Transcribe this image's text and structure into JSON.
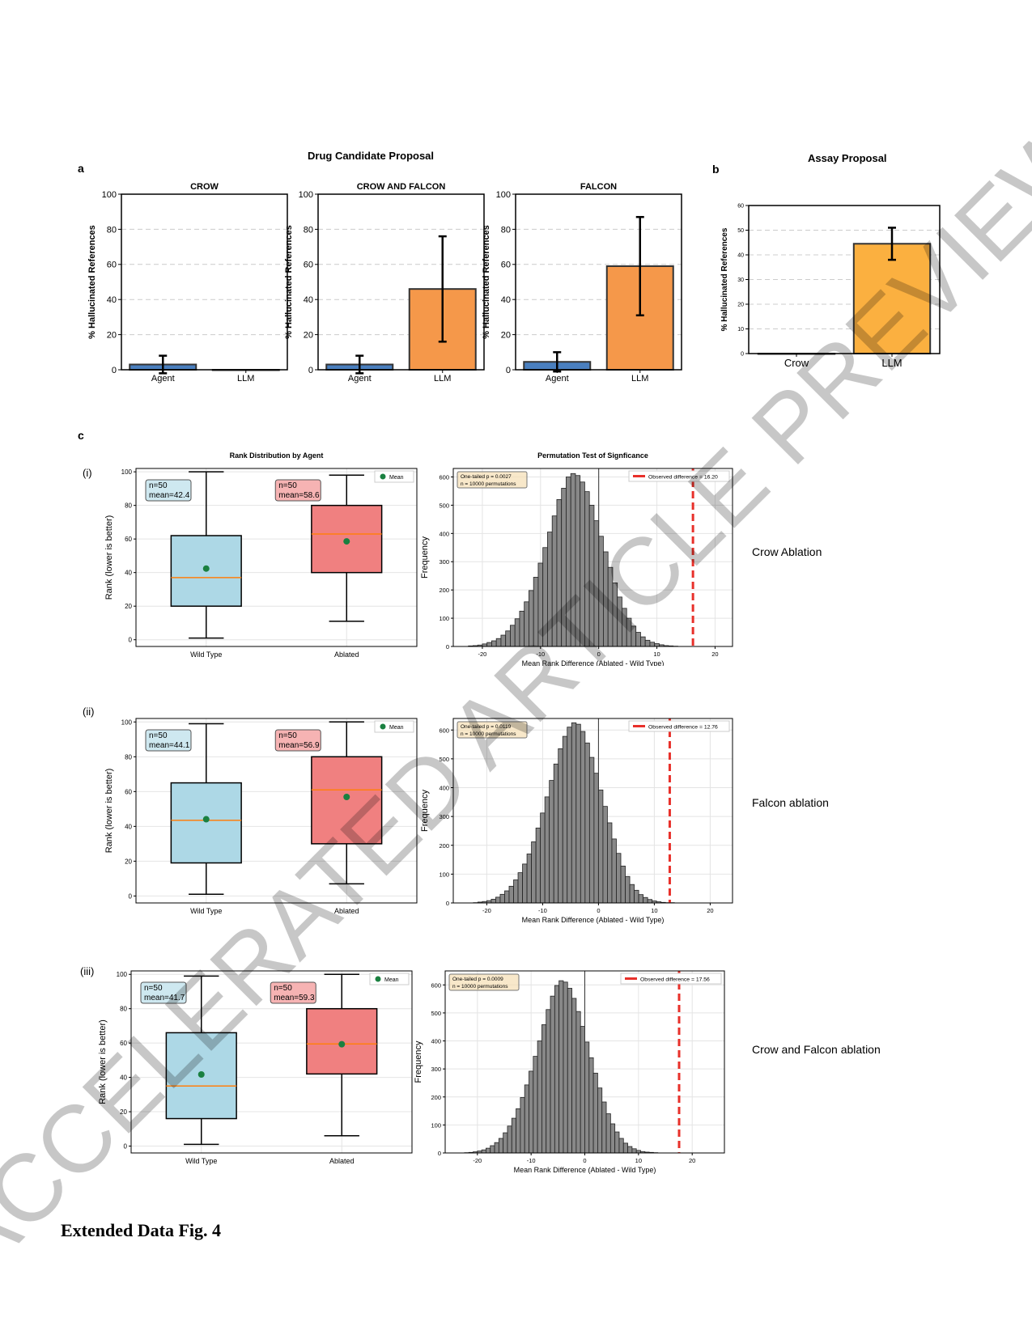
{
  "header": {
    "panel_a_letter": "a",
    "panel_b_letter": "b",
    "panel_c_letter": "c",
    "drug_title": "Drug Candidate Proposal",
    "assay_title": "Assay Proposal"
  },
  "rows": [
    {
      "label": "(i)",
      "side": "Crow Ablation"
    },
    {
      "label": "(ii)",
      "side": "Falcon ablation"
    },
    {
      "label": "(iii)",
      "side": "Crow and Falcon ablation"
    }
  ],
  "caption": "Extended Data Fig. 4",
  "watermark": "ACCELERATED ARTICLE PREVIEW",
  "colors": {
    "agent": "#4a7fbf",
    "llm": "#f5984a",
    "assay_llm": "#fbb040",
    "wild": "#add8e6",
    "ablated": "#f08080",
    "median": "#ff7f0e",
    "mean": "#1a8040",
    "hist": "#888888",
    "observed": "#e8302a"
  },
  "chart_data": [
    {
      "type": "bar",
      "title": "CROW",
      "categories": [
        "Agent",
        "LLM"
      ],
      "values": [
        3,
        0
      ],
      "errors": [
        5,
        0
      ],
      "ylabel": "% Hallucinated References",
      "ylim": [
        0,
        100
      ],
      "yticks": [
        0,
        20,
        40,
        60,
        80,
        100
      ],
      "grid": true
    },
    {
      "type": "bar",
      "title": "CROW AND FALCON",
      "categories": [
        "Agent",
        "LLM"
      ],
      "values": [
        3,
        46
      ],
      "errors": [
        5,
        30
      ],
      "ylabel": "% Hallucinated References",
      "ylim": [
        0,
        100
      ],
      "yticks": [
        0,
        20,
        40,
        60,
        80,
        100
      ],
      "grid": true
    },
    {
      "type": "bar",
      "title": "FALCON",
      "categories": [
        "Agent",
        "LLM"
      ],
      "values": [
        4.5,
        59
      ],
      "errors": [
        5.5,
        28
      ],
      "ylabel": "% Hallucinated References",
      "ylim": [
        0,
        100
      ],
      "yticks": [
        0,
        20,
        40,
        60,
        80,
        100
      ],
      "grid": true
    },
    {
      "type": "bar",
      "title": "",
      "categories": [
        "Crow",
        "LLM"
      ],
      "values": [
        0,
        44.5
      ],
      "errors": [
        0,
        6.5
      ],
      "ylabel": "% Hallucinated References",
      "ylim": [
        0,
        60
      ],
      "yticks": [
        0,
        10,
        20,
        30,
        40,
        50,
        60
      ],
      "grid": true
    },
    {
      "type": "box",
      "title": "Rank Distribution by Agent",
      "categories": [
        "Wild Type",
        "Ablated"
      ],
      "ylabel": "Rank (lower is better)",
      "ylim": [
        -4,
        102
      ],
      "yticks": [
        0,
        20,
        40,
        60,
        80,
        100
      ],
      "legend": "Mean",
      "legend_position": "top-right",
      "boxes": [
        {
          "min": 1,
          "q1": 20,
          "median": 37,
          "q3": 62,
          "max": 100,
          "mean": 42.4,
          "stat_n": "n=50",
          "stat_mean": "mean=42.4"
        },
        {
          "min": 11,
          "q1": 40,
          "median": 63,
          "q3": 80,
          "max": 98,
          "mean": 58.6,
          "stat_n": "n=50",
          "stat_mean": "mean=58.6"
        }
      ]
    },
    {
      "type": "histogram",
      "title": "Permutation Test of Signficance",
      "xlabel": "Mean Rank Difference (Ablated - Wild Type)",
      "ylabel": "Frequency",
      "xlim": [
        -25,
        23
      ],
      "ylim": [
        0,
        630
      ],
      "xticks": [
        -20,
        -10,
        0,
        10,
        20
      ],
      "yticks": [
        0,
        100,
        200,
        300,
        400,
        500,
        600
      ],
      "bin_start": -22.4,
      "bin_width": 0.8,
      "observed": 16.2,
      "observed_label": "Observed difference = 16.20",
      "stat_p": "One-tailed p = 0.0027",
      "stat_n": "n = 10000 permutations",
      "legend_position": "top-right",
      "counts": [
        2,
        3,
        5,
        9,
        14,
        20,
        28,
        40,
        55,
        75,
        98,
        125,
        158,
        198,
        245,
        295,
        350,
        405,
        462,
        520,
        560,
        600,
        612,
        605,
        582,
        548,
        500,
        445,
        390,
        335,
        280,
        225,
        175,
        135,
        100,
        72,
        50,
        34,
        22,
        15,
        10,
        6,
        3,
        2,
        1
      ]
    },
    {
      "type": "box",
      "title": "",
      "categories": [
        "Wild Type",
        "Ablated"
      ],
      "ylabel": "Rank (lower is better)",
      "ylim": [
        -4,
        102
      ],
      "yticks": [
        0,
        20,
        40,
        60,
        80,
        100
      ],
      "legend": "Mean",
      "legend_position": "top-right",
      "boxes": [
        {
          "min": 1,
          "q1": 19,
          "median": 43.5,
          "q3": 65,
          "max": 99,
          "mean": 44.1,
          "stat_n": "n=50",
          "stat_mean": "mean=44.1"
        },
        {
          "min": 7,
          "q1": 30,
          "median": 61,
          "q3": 80,
          "max": 100,
          "mean": 56.9,
          "stat_n": "n=50",
          "stat_mean": "mean=56.9"
        }
      ]
    },
    {
      "type": "histogram",
      "title": "",
      "xlabel": "Mean Rank Difference (Ablated - Wild Type)",
      "ylabel": "Frequency",
      "xlim": [
        -26,
        24
      ],
      "ylim": [
        0,
        640
      ],
      "xticks": [
        -20,
        -10,
        0,
        10,
        20
      ],
      "yticks": [
        0,
        100,
        200,
        300,
        400,
        500,
        600
      ],
      "bin_start": -22.4,
      "bin_width": 0.8,
      "observed": 12.76,
      "observed_label": "Observed difference = 12.76",
      "stat_p": "One-tailed p = 0.0119",
      "stat_n": "n = 10000 permutations",
      "legend_position": "top-right",
      "counts": [
        1,
        3,
        5,
        8,
        13,
        20,
        30,
        42,
        58,
        80,
        105,
        135,
        170,
        212,
        260,
        312,
        368,
        425,
        482,
        535,
        578,
        610,
        625,
        620,
        595,
        555,
        505,
        450,
        392,
        335,
        278,
        222,
        172,
        128,
        92,
        64,
        44,
        29,
        19,
        12,
        7,
        4,
        2,
        1,
        1
      ]
    },
    {
      "type": "box",
      "title": "",
      "categories": [
        "Wild Type",
        "Ablated"
      ],
      "ylabel": "Rank (lower is better)",
      "ylim": [
        -4,
        102
      ],
      "yticks": [
        0,
        20,
        40,
        60,
        80,
        100
      ],
      "legend": "Mean",
      "legend_position": "top-right",
      "boxes": [
        {
          "min": 1,
          "q1": 16,
          "median": 35,
          "q3": 66,
          "max": 99,
          "mean": 41.7,
          "stat_n": "n=50",
          "stat_mean": "mean=41.7"
        },
        {
          "min": 6,
          "q1": 42,
          "median": 59.5,
          "q3": 80,
          "max": 100,
          "mean": 59.3,
          "stat_n": "n=50",
          "stat_mean": "mean=59.3"
        }
      ]
    },
    {
      "type": "histogram",
      "title": "",
      "xlabel": "Mean Rank Difference (Ablated - Wild Type)",
      "ylabel": "Frequency",
      "xlim": [
        -26,
        26
      ],
      "ylim": [
        0,
        650
      ],
      "xticks": [
        -20,
        -10,
        0,
        10,
        20
      ],
      "yticks": [
        0,
        100,
        200,
        300,
        400,
        500,
        600
      ],
      "bin_start": -22.4,
      "bin_width": 0.8,
      "observed": 17.56,
      "observed_label": "Observed difference = 17.56",
      "stat_p": "One-tailed p = 0.0009",
      "stat_n": "n = 10000 permutations",
      "legend_position": "top-right",
      "counts": [
        1,
        2,
        4,
        7,
        11,
        17,
        26,
        37,
        52,
        72,
        96,
        124,
        158,
        198,
        243,
        292,
        345,
        400,
        458,
        512,
        560,
        598,
        615,
        610,
        588,
        552,
        505,
        452,
        396,
        340,
        285,
        232,
        182,
        140,
        104,
        75,
        52,
        35,
        23,
        15,
        9,
        5,
        3,
        2,
        1
      ]
    }
  ]
}
